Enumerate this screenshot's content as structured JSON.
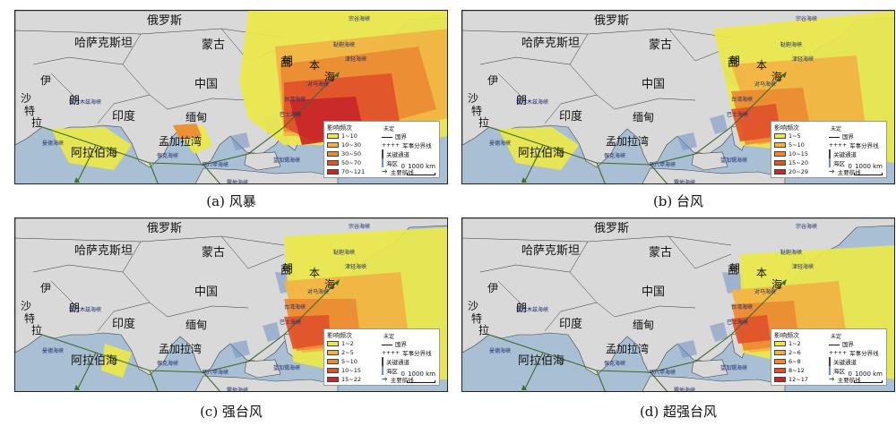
{
  "places": {
    "russia": "俄罗斯",
    "kazakhstan": "哈萨克斯坦",
    "mongolia": "蒙古",
    "china": "中国",
    "india": "印度",
    "myanmar": "缅甸",
    "bangladesh": "孟加拉湾",
    "arabian_sea": "阿拉伯海",
    "japan_sea": "海",
    "japan_char": "本",
    "korea": "朝",
    "iran": "伊",
    "iran2": "朗",
    "saudi": "沙",
    "saudi2": "特",
    "saudi3": "拉",
    "west": "西"
  },
  "straits": {
    "la_perouse": "宗谷海峡",
    "tatar": "鞑靼海峡",
    "tsugaru": "津轻海峡",
    "korea_strait": "对马海峡",
    "taiwan": "台湾海峡",
    "bashi": "巴士海峡",
    "malacca": "马六甲海峡",
    "hormuz": "霍尔木兹海峡",
    "mandeb": "曼德海峡",
    "sunda": "巽他海峡",
    "lombok": "望加锡海峡",
    "palk": "保克海峡"
  },
  "legend_common": {
    "title": "影响频次",
    "undecided": "未定",
    "border": "国界",
    "military": "军事分界线",
    "key_channel": "关键通道",
    "sea_area": "海区",
    "main_route": "主要航线",
    "scale": "1000 km",
    "scale_zero": "0"
  },
  "colors": {
    "c1": "#ece84a",
    "c2": "#f2b343",
    "c3": "#ec8a32",
    "c4": "#e0522a",
    "c5": "#c8262a",
    "land": "#d9d9d9",
    "sea": "#a9bfd4",
    "route": "#3d6b2c"
  },
  "panels": [
    {
      "caption": "(a) 风暴",
      "classes": [
        "1~10",
        "10~30",
        "30~50",
        "50~70",
        "70~121"
      ]
    },
    {
      "caption": "(b) 台风",
      "classes": [
        "1~5",
        "5~10",
        "10~15",
        "15~20",
        "20~29"
      ]
    },
    {
      "caption": "(c) 强台风",
      "classes": [
        "1~2",
        "2~5",
        "5~10",
        "10~15",
        "15~22"
      ]
    },
    {
      "caption": "(d) 超强台风",
      "classes": [
        "1~2",
        "2~6",
        "6~8",
        "8~12",
        "12~17"
      ]
    }
  ]
}
